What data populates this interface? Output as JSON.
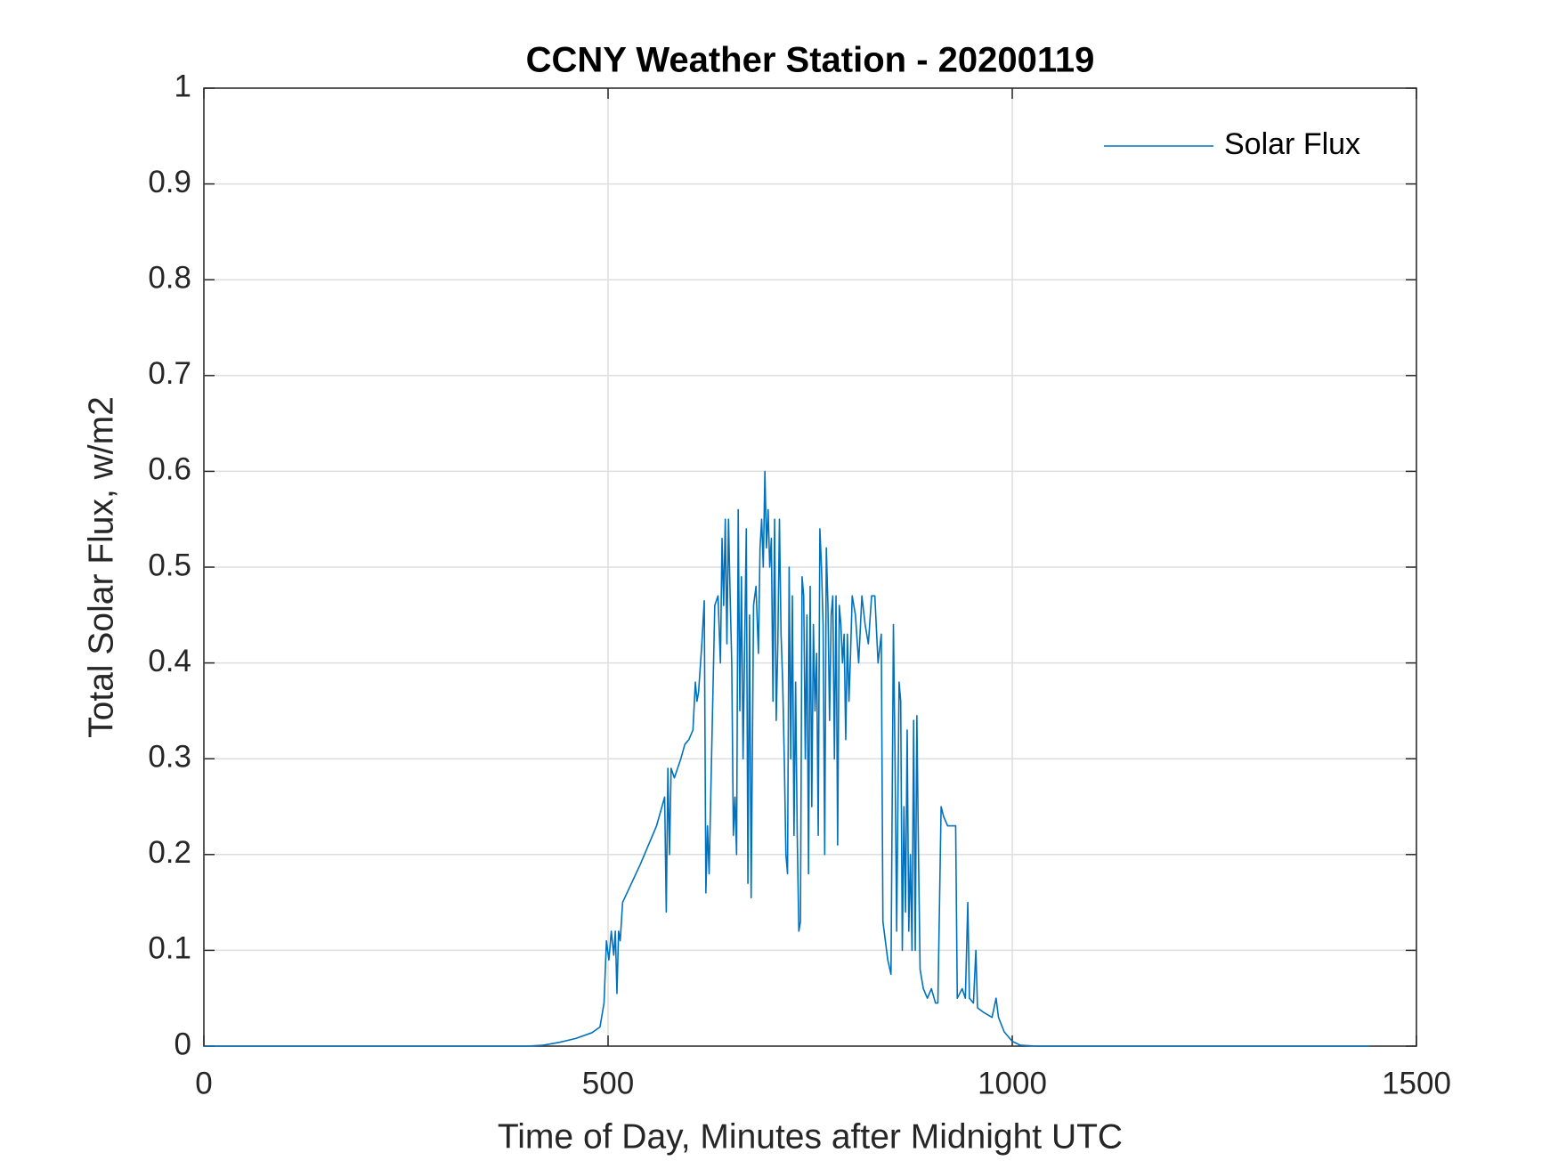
{
  "chart_data": {
    "type": "line",
    "title": "CCNY Weather Station - 20200119",
    "x_label": "Time of Day, Minutes after Midnight UTC",
    "y_label": "Total Solar Flux, w/m2",
    "x": [
      0,
      400,
      420,
      440,
      460,
      480,
      490,
      495,
      498,
      501,
      504,
      507,
      509,
      511,
      513,
      515,
      518,
      540,
      560,
      570,
      572,
      574,
      576,
      578,
      582,
      590,
      595,
      600,
      605,
      608,
      610,
      612,
      616,
      619,
      621,
      623,
      625,
      628,
      632,
      636,
      639,
      641,
      643,
      645,
      647,
      649,
      651,
      653,
      655,
      657,
      659,
      661,
      663,
      665,
      667,
      669,
      671,
      673,
      675,
      677,
      680,
      683,
      686,
      688,
      690,
      692,
      694,
      696,
      698,
      700,
      702,
      704,
      706,
      708,
      710,
      712,
      714,
      716,
      718,
      720,
      722,
      724,
      726,
      728,
      730,
      732,
      734,
      736,
      738,
      740,
      742,
      744,
      746,
      748,
      750,
      752,
      754,
      756,
      758,
      760,
      762,
      764,
      766,
      768,
      770,
      772,
      774,
      776,
      778,
      780,
      782,
      784,
      786,
      788,
      790,
      792,
      794,
      796,
      798,
      800,
      802,
      806,
      810,
      814,
      818,
      822,
      826,
      830,
      834,
      838,
      840,
      843,
      846,
      850,
      853,
      855,
      857,
      860,
      862,
      864,
      866,
      868,
      870,
      872,
      874,
      876,
      878,
      880,
      882,
      884,
      886,
      890,
      895,
      900,
      905,
      908,
      912,
      915,
      920,
      930,
      932,
      938,
      942,
      945,
      947,
      952,
      955,
      957,
      965,
      975,
      980,
      983,
      990,
      1000,
      1010,
      1030,
      1442
    ],
    "series": [
      {
        "name": "Solar Flux",
        "color": "#0072bd",
        "values": [
          0,
          0,
          0.001,
          0.004,
          0.008,
          0.014,
          0.02,
          0.045,
          0.11,
          0.09,
          0.12,
          0.095,
          0.12,
          0.055,
          0.12,
          0.11,
          0.15,
          0.19,
          0.23,
          0.26,
          0.14,
          0.29,
          0.2,
          0.29,
          0.28,
          0.3,
          0.315,
          0.32,
          0.33,
          0.38,
          0.36,
          0.37,
          0.42,
          0.465,
          0.16,
          0.23,
          0.18,
          0.3,
          0.46,
          0.47,
          0.4,
          0.53,
          0.46,
          0.55,
          0.42,
          0.55,
          0.47,
          0.4,
          0.22,
          0.26,
          0.2,
          0.56,
          0.35,
          0.49,
          0.3,
          0.42,
          0.54,
          0.17,
          0.45,
          0.155,
          0.46,
          0.48,
          0.41,
          0.52,
          0.55,
          0.5,
          0.6,
          0.52,
          0.56,
          0.5,
          0.53,
          0.36,
          0.55,
          0.34,
          0.42,
          0.55,
          0.43,
          0.38,
          0.3,
          0.2,
          0.18,
          0.5,
          0.3,
          0.47,
          0.22,
          0.38,
          0.22,
          0.12,
          0.13,
          0.49,
          0.47,
          0.3,
          0.45,
          0.18,
          0.48,
          0.25,
          0.44,
          0.35,
          0.41,
          0.22,
          0.54,
          0.5,
          0.44,
          0.2,
          0.52,
          0.46,
          0.34,
          0.45,
          0.47,
          0.3,
          0.47,
          0.21,
          0.46,
          0.44,
          0.4,
          0.43,
          0.32,
          0.43,
          0.36,
          0.41,
          0.47,
          0.45,
          0.4,
          0.47,
          0.44,
          0.42,
          0.47,
          0.47,
          0.4,
          0.43,
          0.13,
          0.11,
          0.09,
          0.075,
          0.44,
          0.3,
          0.12,
          0.38,
          0.36,
          0.1,
          0.25,
          0.14,
          0.33,
          0.12,
          0.2,
          0.1,
          0.34,
          0.1,
          0.345,
          0.2,
          0.08,
          0.06,
          0.05,
          0.06,
          0.045,
          0.045,
          0.25,
          0.24,
          0.23,
          0.23,
          0.05,
          0.06,
          0.05,
          0.15,
          0.05,
          0.045,
          0.1,
          0.04,
          0.035,
          0.03,
          0.05,
          0.03,
          0.015,
          0.005,
          0.001,
          0,
          0
        ]
      }
    ],
    "xlim": [
      0,
      1500
    ],
    "xticks": [
      0,
      500,
      1000,
      1500
    ],
    "ylim": [
      0,
      1
    ],
    "yticks": [
      0,
      0.1,
      0.2,
      0.3,
      0.4,
      0.5,
      0.6,
      0.7,
      0.8,
      0.9,
      1
    ],
    "grid": true,
    "legend": "top-right"
  }
}
